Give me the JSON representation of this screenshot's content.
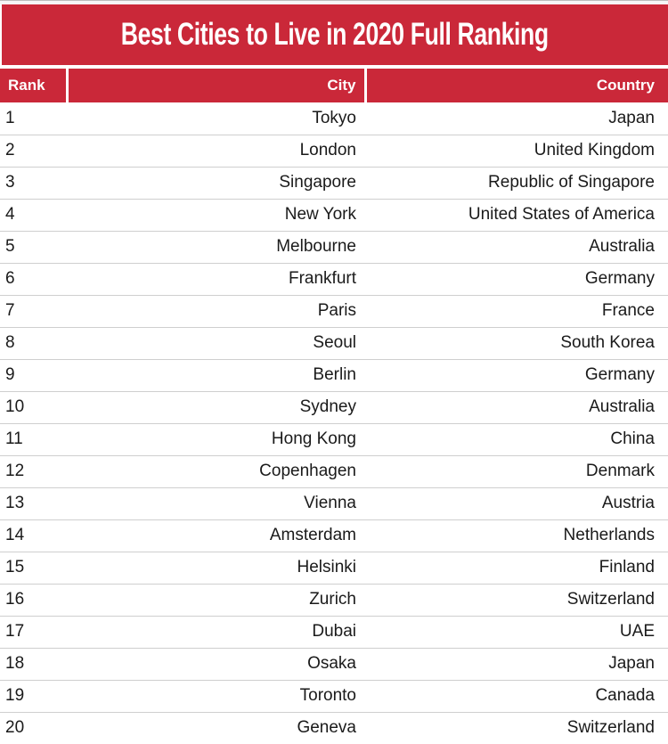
{
  "title": "Best Cities to Live in 2020 Full Ranking",
  "theme": {
    "banner_red": "#ca2839",
    "header_text": "#ffffff",
    "body_text": "#1a1a1a",
    "row_divider": "#cfcfcf"
  },
  "chart_data": {
    "type": "table",
    "title": "Best Cities to Live in 2020 Full Ranking",
    "columns": [
      "Rank",
      "City",
      "Country"
    ],
    "rows": [
      [
        "1",
        "Tokyo",
        "Japan"
      ],
      [
        "2",
        "London",
        "United Kingdom"
      ],
      [
        "3",
        "Singapore",
        "Republic of Singapore"
      ],
      [
        "4",
        "New York",
        "United States of America"
      ],
      [
        "5",
        "Melbourne",
        "Australia"
      ],
      [
        "6",
        "Frankfurt",
        "Germany"
      ],
      [
        "7",
        "Paris",
        "France"
      ],
      [
        "8",
        "Seoul",
        "South Korea"
      ],
      [
        "9",
        "Berlin",
        "Germany"
      ],
      [
        "10",
        "Sydney",
        "Australia"
      ],
      [
        "11",
        "Hong Kong",
        "China"
      ],
      [
        "12",
        "Copenhagen",
        "Denmark"
      ],
      [
        "13",
        "Vienna",
        "Austria"
      ],
      [
        "14",
        "Amsterdam",
        "Netherlands"
      ],
      [
        "15",
        "Helsinki",
        "Finland"
      ],
      [
        "16",
        "Zurich",
        "Switzerland"
      ],
      [
        "17",
        "Dubai",
        "UAE"
      ],
      [
        "18",
        "Osaka",
        "Japan"
      ],
      [
        "19",
        "Toronto",
        "Canada"
      ],
      [
        "20",
        "Geneva",
        "Switzerland"
      ]
    ]
  }
}
